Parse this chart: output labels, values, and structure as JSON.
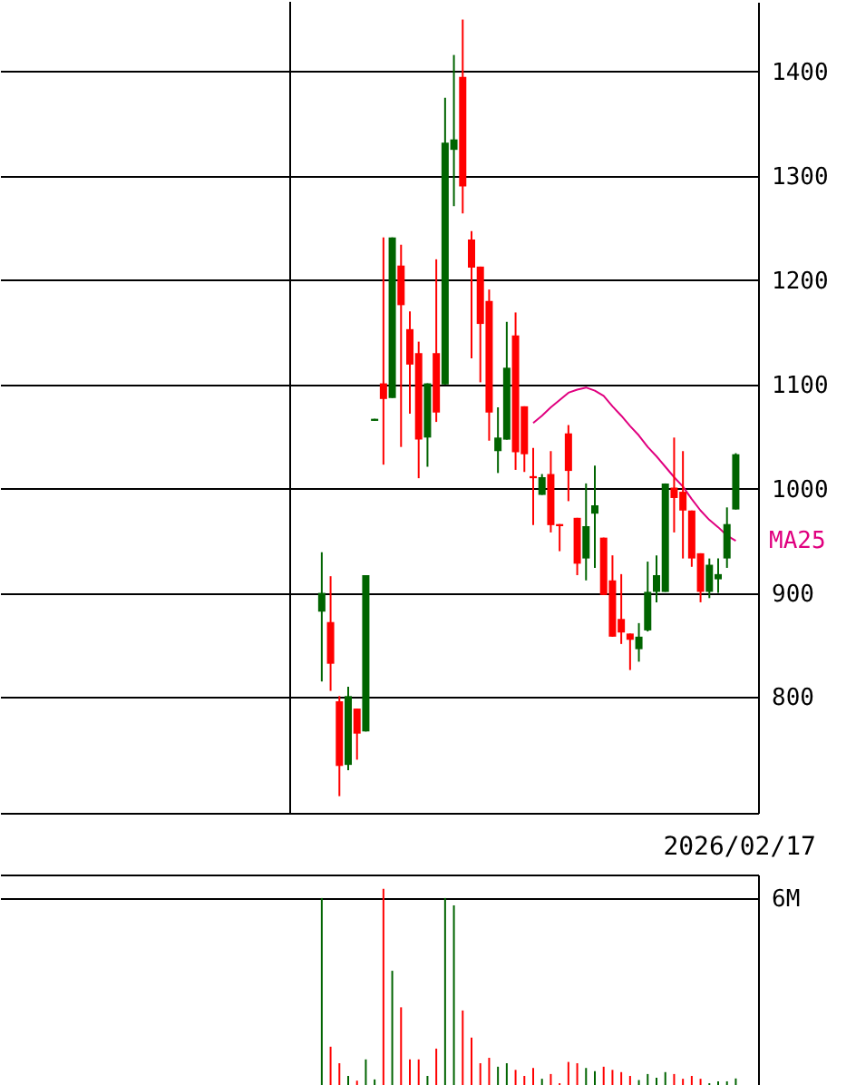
{
  "chart_data": [
    {
      "type": "candlestick",
      "categories": [
        null,
        null,
        null,
        null,
        null,
        null,
        null,
        null,
        null,
        null,
        null,
        null,
        null,
        null,
        null,
        null,
        null,
        null,
        null,
        null,
        null,
        null,
        null,
        null,
        null,
        null,
        null,
        null,
        null,
        null,
        null,
        null,
        null,
        null,
        null,
        null,
        null,
        null,
        null,
        null,
        null,
        null,
        null,
        null,
        null,
        null,
        null,
        null,
        null,
        null,
        null,
        null,
        null,
        null,
        null,
        null,
        null,
        null,
        null,
        null,
        null,
        null,
        null,
        null,
        null,
        null,
        null,
        null,
        null,
        null,
        null,
        null,
        null,
        null,
        null,
        null,
        null,
        null,
        null,
        null,
        null,
        null,
        null,
        null
      ],
      "ohlc": [
        null,
        null,
        null,
        null,
        null,
        null,
        null,
        null,
        null,
        null,
        null,
        null,
        null,
        null,
        null,
        null,
        null,
        null,
        null,
        null,
        null,
        null,
        null,
        null,
        null,
        null,
        null,
        null,
        null,
        null,
        null,
        null,
        null,
        null,
        null,
        [
          882,
          939,
          815,
          900
        ],
        [
          872,
          916,
          806,
          832
        ],
        [
          796,
          801,
          705,
          734
        ],
        [
          735,
          810,
          730,
          801
        ],
        [
          789,
          789,
          740,
          765
        ],
        [
          767,
          917,
          767,
          917
        ],
        [
          1067,
          1067,
          1065,
          1065
        ],
        [
          1101,
          1241,
          1023,
          1086
        ],
        [
          1087,
          1241,
          1087,
          1241
        ],
        [
          1214,
          1234,
          1040,
          1176
        ],
        [
          1153,
          1170,
          1072,
          1119
        ],
        [
          1130,
          1141,
          1010,
          1047
        ],
        [
          1049,
          1101,
          1021,
          1101
        ],
        [
          1130,
          1220,
          1064,
          1073
        ],
        [
          1100,
          1375,
          1100,
          1332
        ],
        [
          1325,
          1416,
          1271,
          1335
        ],
        [
          1395,
          1450,
          1264,
          1290
        ],
        [
          1239,
          1247,
          1125,
          1212
        ],
        [
          1213,
          1213,
          1102,
          1158
        ],
        [
          1180,
          1191,
          1046,
          1073
        ],
        [
          1036,
          1078,
          1015,
          1049
        ],
        [
          1047,
          1160,
          1047,
          1116
        ],
        [
          1147,
          1169,
          1018,
          1035
        ],
        [
          1079,
          1079,
          1016,
          1033
        ],
        [
          1012,
          1039,
          965,
          1010
        ],
        [
          994,
          1014,
          994,
          1011
        ],
        [
          1014,
          1036,
          958,
          965
        ],
        [
          966,
          966,
          940,
          964
        ],
        [
          1053,
          1061,
          988,
          1017
        ],
        [
          972,
          972,
          917,
          928
        ],
        [
          933,
          1005,
          912,
          964
        ],
        [
          976,
          1022,
          924,
          984
        ],
        [
          953,
          953,
          898,
          898
        ],
        [
          912,
          936,
          858,
          858
        ],
        [
          875,
          918,
          851,
          862
        ],
        [
          861,
          861,
          826,
          855
        ],
        [
          846,
          871,
          834,
          858
        ],
        [
          864,
          930,
          863,
          901
        ],
        [
          901,
          936,
          891,
          917
        ],
        [
          901,
          1005,
          901,
          1005
        ],
        [
          1001,
          1049,
          958,
          991
        ],
        [
          997,
          1036,
          933,
          979
        ],
        [
          979,
          979,
          925,
          933
        ],
        [
          938,
          938,
          891,
          901
        ],
        [
          901,
          933,
          895,
          927
        ],
        [
          913,
          933,
          900,
          918
        ],
        [
          933,
          982,
          924,
          966
        ],
        [
          980,
          1034,
          980,
          1033
        ],
        null
      ],
      "colors": [
        null,
        null,
        null,
        null,
        null,
        null,
        null,
        null,
        null,
        null,
        null,
        null,
        null,
        null,
        null,
        null,
        null,
        null,
        null,
        null,
        null,
        null,
        null,
        null,
        null,
        null,
        null,
        null,
        null,
        null,
        null,
        null,
        null,
        null,
        null,
        "#006400",
        "#ff0000",
        "#ff0000",
        "#006400",
        "#ff0000",
        "#006400",
        "#006400",
        "#ff0000",
        "#006400",
        "#ff0000",
        "#ff0000",
        "#ff0000",
        "#006400",
        "#ff0000",
        "#006400",
        "#006400",
        "#ff0000",
        "#ff0000",
        "#ff0000",
        "#ff0000",
        "#006400",
        "#006400",
        "#ff0000",
        "#ff0000",
        "#ff0000",
        "#006400",
        "#ff0000",
        "#ff0000",
        "#ff0000",
        "#ff0000",
        "#006400",
        "#006400",
        "#ff0000",
        "#ff0000",
        "#ff0000",
        "#ff0000",
        "#006400",
        "#006400",
        "#006400",
        "#006400",
        "#ff0000",
        "#ff0000",
        "#ff0000",
        "#ff0000",
        "#006400",
        "#006400",
        "#006400",
        "#006400",
        null
      ],
      "series": [
        {
          "name": "MA25",
          "type": "line",
          "color": "#e0007f",
          "values": [
            null,
            null,
            null,
            null,
            null,
            null,
            null,
            null,
            null,
            null,
            null,
            null,
            null,
            null,
            null,
            null,
            null,
            null,
            null,
            null,
            null,
            null,
            null,
            null,
            null,
            null,
            null,
            null,
            null,
            null,
            null,
            null,
            null,
            null,
            null,
            null,
            null,
            null,
            null,
            null,
            null,
            null,
            null,
            null,
            null,
            null,
            null,
            null,
            null,
            null,
            null,
            null,
            null,
            null,
            null,
            null,
            null,
            null,
            null,
            1063,
            1070,
            1078,
            1085,
            1092,
            1095,
            1097,
            1094,
            1089,
            1079,
            1070,
            1060,
            1051,
            1040,
            1031,
            1021,
            1011,
            1002,
            990,
            979,
            970,
            963,
            955,
            950,
            null
          ]
        }
      ],
      "ylim": [
        689,
        1467
      ],
      "yticks": [
        800,
        900,
        1000,
        1100,
        1200,
        1300,
        1400
      ],
      "grid": "y",
      "tick_labels": "y",
      "annotations": [
        "2026/02/17"
      ]
    },
    {
      "type": "bar",
      "categories": [
        null,
        null,
        null,
        null,
        null,
        null,
        null,
        null,
        null,
        null,
        null,
        null,
        null,
        null,
        null,
        null,
        null,
        null,
        null,
        null,
        null,
        null,
        null,
        null,
        null,
        null,
        null,
        null,
        null,
        null,
        null,
        null,
        null,
        null,
        null,
        null,
        null,
        null,
        null,
        null,
        null,
        null,
        null,
        null,
        null,
        null,
        null,
        null,
        null,
        null,
        null,
        null,
        null,
        null,
        null,
        null,
        null,
        null,
        null,
        null,
        null,
        null,
        null,
        null,
        null,
        null,
        null,
        null,
        null,
        null,
        null,
        null,
        null,
        null,
        null,
        null,
        null,
        null,
        null,
        null,
        null,
        null,
        null,
        null
      ],
      "values": [
        null,
        null,
        null,
        null,
        null,
        null,
        null,
        null,
        null,
        null,
        null,
        null,
        null,
        null,
        null,
        null,
        null,
        null,
        null,
        null,
        null,
        null,
        null,
        null,
        null,
        null,
        null,
        null,
        null,
        null,
        null,
        null,
        null,
        null,
        null,
        6.0,
        1.32,
        0.8,
        0.4,
        0.25,
        0.92,
        0.29,
        6.29,
        3.71,
        2.56,
        0.92,
        0.92,
        0.4,
        1.26,
        6.0,
        5.77,
        2.46,
        1.61,
        0.8,
        0.97,
        0.69,
        0.8,
        0.59,
        0.4,
        0.65,
        0.31,
        0.46,
        0.17,
        0.84,
        0.8,
        0.65,
        0.55,
        0.69,
        0.59,
        0.52,
        0.4,
        0.27,
        0.46,
        0.34,
        0.52,
        0.46,
        0.31,
        0.4,
        0.31,
        0.17,
        0.23,
        0.23,
        0.32,
        null
      ],
      "colors": [
        null,
        null,
        null,
        null,
        null,
        null,
        null,
        null,
        null,
        null,
        null,
        null,
        null,
        null,
        null,
        null,
        null,
        null,
        null,
        null,
        null,
        null,
        null,
        null,
        null,
        null,
        null,
        null,
        null,
        null,
        null,
        null,
        null,
        null,
        null,
        "#006400",
        "#ff0000",
        "#ff0000",
        "#006400",
        "#ff0000",
        "#006400",
        "#006400",
        "#ff0000",
        "#006400",
        "#ff0000",
        "#ff0000",
        "#ff0000",
        "#006400",
        "#ff0000",
        "#006400",
        "#006400",
        "#ff0000",
        "#ff0000",
        "#ff0000",
        "#ff0000",
        "#006400",
        "#006400",
        "#ff0000",
        "#ff0000",
        "#ff0000",
        "#006400",
        "#ff0000",
        "#ff0000",
        "#ff0000",
        "#ff0000",
        "#006400",
        "#006400",
        "#ff0000",
        "#ff0000",
        "#ff0000",
        "#ff0000",
        "#006400",
        "#006400",
        "#006400",
        "#006400",
        "#ff0000",
        "#ff0000",
        "#ff0000",
        "#ff0000",
        "#006400",
        "#006400",
        "#006400",
        "#006400",
        null
      ],
      "ylim": [
        0,
        6.74
      ],
      "yticks": [
        {
          "value": 6,
          "label": "6M"
        }
      ],
      "grid": "y",
      "tick_labels": "y"
    }
  ]
}
